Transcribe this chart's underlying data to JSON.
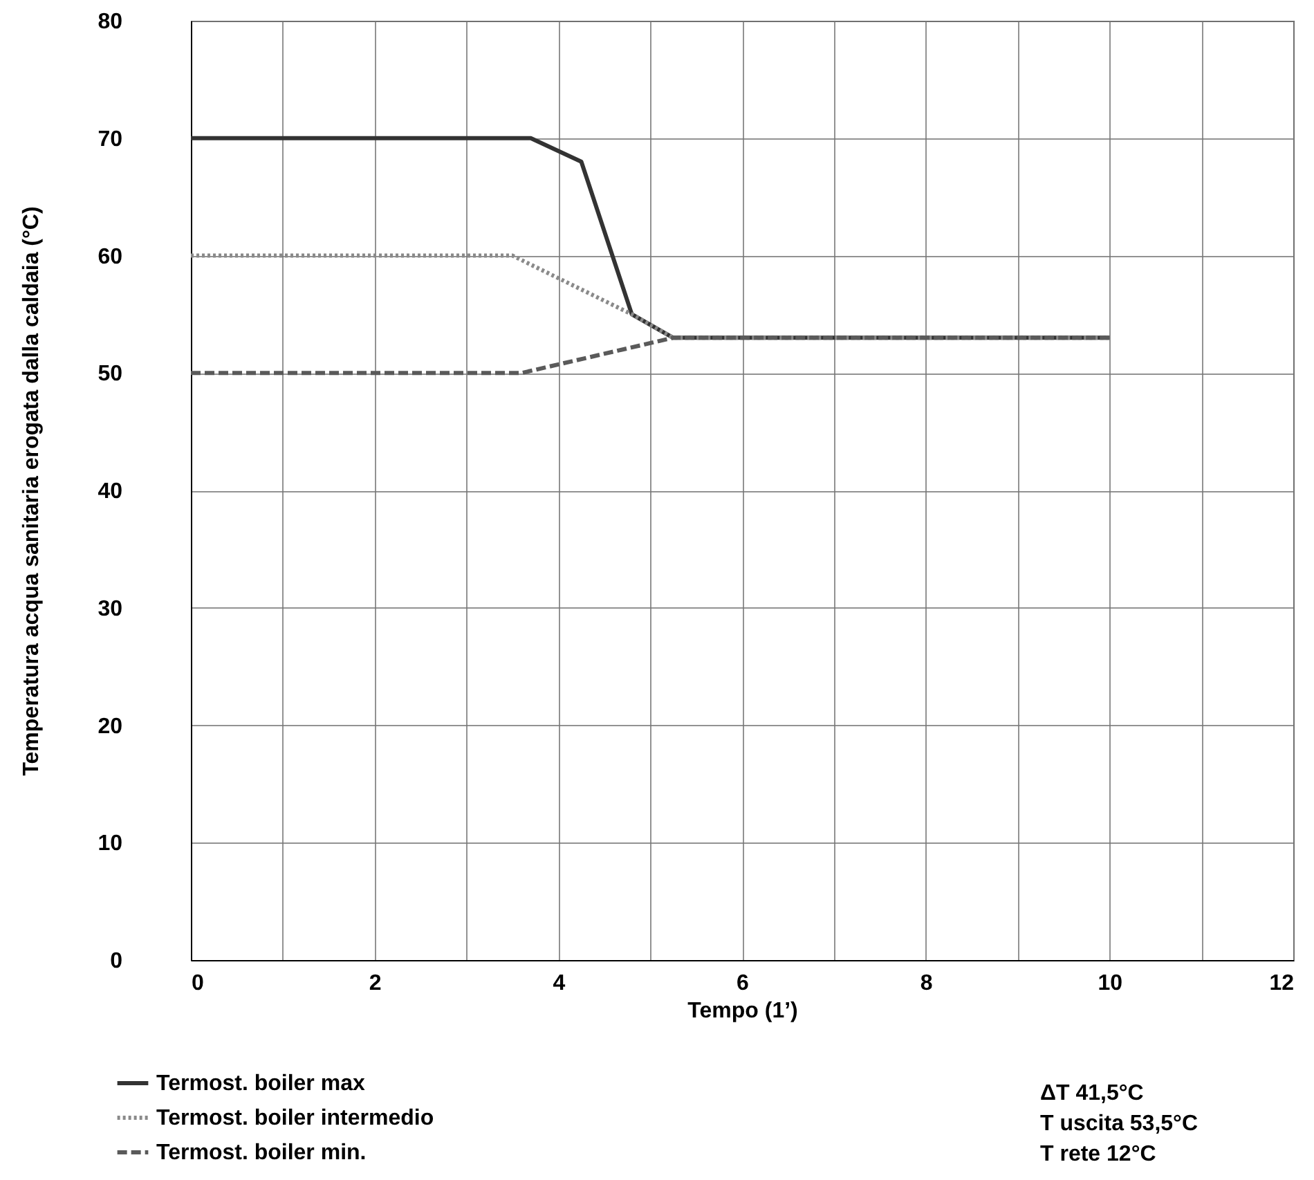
{
  "chart_data": {
    "type": "line",
    "xlabel": "Tempo (1’)",
    "ylabel": "Temperatura acqua sanitaria erogata dalla caldaia (°C)",
    "xlim": [
      0,
      12
    ],
    "xticks": [
      0,
      {
        "value": 1,
        "label": null
      },
      2,
      {
        "value": 3,
        "label": null
      },
      4,
      {
        "value": 5,
        "label": null
      },
      6,
      {
        "value": 7,
        "label": null
      },
      8,
      {
        "value": 9,
        "label": null
      },
      10,
      {
        "value": 11,
        "label": null
      },
      12
    ],
    "ylim": [
      0,
      80
    ],
    "yticks": [
      0,
      10,
      20,
      30,
      40,
      50,
      60,
      70,
      80
    ],
    "grid": true,
    "legend": "bottom left",
    "marker": "none",
    "series": [
      {
        "name": "Termost. boiler max",
        "color": "#333333",
        "line_style": "solid",
        "x": [
          0,
          3.7,
          4.25,
          4.8,
          5.25,
          10
        ],
        "values": [
          70,
          70,
          68,
          55,
          53,
          53
        ]
      },
      {
        "name": "Termost. boiler intermedio",
        "color": "#8a8a8a",
        "line_style": "dotted",
        "x": [
          0,
          3.5,
          4.8,
          5.25,
          10
        ],
        "values": [
          60,
          60,
          55,
          53,
          53
        ]
      },
      {
        "name": "Termost. boiler min.",
        "color": "#5a5a5a",
        "line_style": "dashed",
        "x": [
          0,
          3.6,
          5.25,
          10
        ],
        "values": [
          50,
          50,
          53,
          53
        ]
      }
    ],
    "annotations": [
      "ΔT 41,5°C",
      "T uscita 53,5°C",
      "T rete 12°C"
    ]
  }
}
